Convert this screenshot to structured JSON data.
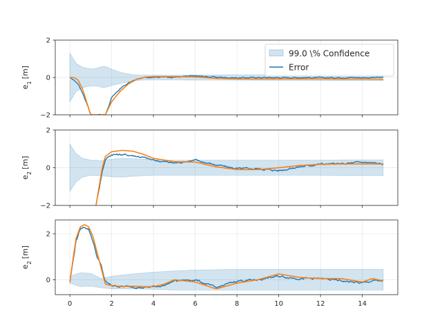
{
  "chart_data": [
    {
      "type": "line",
      "ylabel_main": "e",
      "ylabel_sub": "1",
      "ylabel_unit": "[m]",
      "xlim": [
        -0.7,
        15.7
      ],
      "ylim": [
        -2,
        2
      ],
      "yticks": [
        -2,
        0,
        2
      ],
      "xticks": [
        0,
        2,
        4,
        6,
        8,
        10,
        12,
        14
      ],
      "show_xtick_labels": false,
      "grid": true,
      "legend": {
        "placement": "top-right",
        "entries": [
          {
            "label": "99.0 \\% Confidence",
            "kind": "band"
          },
          {
            "label": "Error",
            "kind": "line"
          }
        ]
      },
      "band": {
        "name": "99.0 \\% Confidence",
        "x": [
          0,
          0.3,
          0.6,
          1.0,
          1.3,
          1.6,
          1.8,
          2.1,
          2.5,
          3.0,
          3.5,
          4,
          5,
          6,
          8,
          10,
          12,
          14,
          15
        ],
        "upper": [
          1.3,
          0.75,
          0.55,
          0.45,
          0.5,
          0.6,
          0.55,
          0.4,
          0.25,
          0.15,
          0.12,
          0.12,
          0.12,
          0.13,
          0.14,
          0.15,
          0.16,
          0.17,
          0.17
        ],
        "lower": [
          -1.3,
          -0.75,
          -0.55,
          -0.45,
          -0.45,
          -0.55,
          -0.5,
          -0.4,
          -0.3,
          -0.18,
          -0.14,
          -0.13,
          -0.13,
          -0.14,
          -0.15,
          -0.16,
          -0.17,
          -0.17,
          -0.17
        ]
      },
      "series": [
        {
          "name": "Error",
          "color": "#1f77b4",
          "x": [
            0,
            0.2,
            0.4,
            0.6,
            0.8,
            1.0,
            1.7,
            2.0,
            2.4,
            2.8,
            3.2,
            3.6,
            4.0,
            5.0,
            6.0,
            7.0,
            8.0,
            9.0,
            10.0,
            11.0,
            12.0,
            13.0,
            14.0,
            15.0
          ],
          "y": [
            0,
            -0.15,
            -0.35,
            -0.8,
            -1.35,
            -2.0,
            -2.0,
            -1.1,
            -0.6,
            -0.3,
            -0.1,
            0.0,
            0.03,
            0.02,
            0.08,
            0.02,
            -0.02,
            0.0,
            -0.01,
            0.0,
            -0.02,
            0.0,
            -0.01,
            0.0
          ],
          "noise": 0.025
        },
        {
          "name": "",
          "color": "#ff7f0e",
          "x": [
            0,
            0.2,
            0.4,
            0.6,
            0.8,
            1.0,
            1.7,
            2.0,
            2.4,
            2.8,
            3.2,
            3.6,
            4.0,
            5.0,
            6.0,
            7.0,
            8.0,
            9.0,
            10.0,
            11.0,
            12.0,
            13.0,
            14.0,
            15.0
          ],
          "y": [
            0,
            0.0,
            -0.15,
            -0.6,
            -1.3,
            -2.0,
            -2.0,
            -1.3,
            -0.75,
            -0.35,
            -0.1,
            0.02,
            0.05,
            0.05,
            0.03,
            -0.05,
            -0.08,
            -0.08,
            -0.08,
            -0.08,
            -0.08,
            -0.09,
            -0.09,
            -0.1
          ],
          "noise": 0
        }
      ]
    },
    {
      "type": "line",
      "ylabel_main": "e",
      "ylabel_sub": "2",
      "ylabel_unit": "[m]",
      "xlim": [
        -0.7,
        15.7
      ],
      "ylim": [
        -2,
        2
      ],
      "yticks": [
        -2,
        0,
        2
      ],
      "xticks": [
        0,
        2,
        4,
        6,
        8,
        10,
        12,
        14
      ],
      "show_xtick_labels": false,
      "grid": true,
      "band": {
        "x": [
          0,
          0.3,
          0.6,
          1.0,
          1.5,
          2.0,
          2.5,
          3.0,
          4.0,
          5.0,
          6.0,
          8.0,
          10.0,
          12.0,
          14.0,
          15.0
        ],
        "upper": [
          1.25,
          0.75,
          0.5,
          0.4,
          0.38,
          0.45,
          0.5,
          0.48,
          0.42,
          0.4,
          0.4,
          0.4,
          0.4,
          0.4,
          0.42,
          0.42
        ],
        "lower": [
          -1.25,
          -0.75,
          -0.5,
          -0.4,
          -0.42,
          -0.48,
          -0.5,
          -0.45,
          -0.4,
          -0.4,
          -0.4,
          -0.4,
          -0.4,
          -0.4,
          -0.42,
          -0.42
        ]
      },
      "series": [
        {
          "name": "Error",
          "color": "#1f77b4",
          "x": [
            1.25,
            1.4,
            1.55,
            1.7,
            2.0,
            2.5,
            3.0,
            3.5,
            4.0,
            5.0,
            6.0,
            7.0,
            8.0,
            9.0,
            10.0,
            11.0,
            12.0,
            13.0,
            14.0,
            15.0
          ],
          "y": [
            -2.0,
            -1.1,
            -0.2,
            0.45,
            0.7,
            0.7,
            0.65,
            0.55,
            0.4,
            0.25,
            0.4,
            0.15,
            -0.05,
            -0.05,
            -0.15,
            0.05,
            0.2,
            0.2,
            0.3,
            0.2
          ],
          "noise": 0.04
        },
        {
          "name": "",
          "color": "#ff7f0e",
          "x": [
            1.25,
            1.4,
            1.55,
            1.7,
            2.0,
            2.5,
            3.0,
            3.5,
            4.0,
            5.0,
            6.0,
            7.0,
            8.0,
            9.0,
            10.0,
            11.0,
            12.0,
            13.0,
            14.0,
            15.0
          ],
          "y": [
            -2.0,
            -1.0,
            0.0,
            0.6,
            0.85,
            0.92,
            0.88,
            0.72,
            0.5,
            0.32,
            0.3,
            0.05,
            -0.1,
            -0.1,
            0.0,
            0.12,
            0.18,
            0.2,
            0.2,
            0.2
          ],
          "noise": 0
        }
      ]
    },
    {
      "type": "line",
      "ylabel_main": "e",
      "ylabel_sub": "2",
      "ylabel_unit": "[m]",
      "xlim": [
        -0.7,
        15.7
      ],
      "ylim": [
        -0.65,
        2.6
      ],
      "yticks": [
        0,
        2
      ],
      "xticks": [
        0,
        2,
        4,
        6,
        8,
        10,
        12,
        14
      ],
      "show_xtick_labels": true,
      "grid": true,
      "band": {
        "x": [
          0,
          0.5,
          1.0,
          1.5,
          2.0,
          3.0,
          4.0,
          5.0,
          6.0,
          8.0,
          10.0,
          12.0,
          14.0,
          15.0
        ],
        "upper": [
          0.15,
          0.3,
          0.28,
          0.05,
          0.15,
          0.25,
          0.33,
          0.38,
          0.42,
          0.45,
          0.45,
          0.45,
          0.45,
          0.45
        ],
        "lower": [
          -0.15,
          -0.3,
          -0.28,
          -0.35,
          -0.4,
          -0.4,
          -0.42,
          -0.45,
          -0.45,
          -0.45,
          -0.45,
          -0.45,
          -0.45,
          -0.45
        ]
      },
      "series": [
        {
          "name": "Error",
          "color": "#1f77b4",
          "x": [
            0,
            0.15,
            0.3,
            0.5,
            0.7,
            0.9,
            1.1,
            1.3,
            1.5,
            1.7,
            2.0,
            2.5,
            3.0,
            3.5,
            4.0,
            4.5,
            5.0,
            6.0,
            7.0,
            8.0,
            9.0,
            10.0,
            11.0,
            12.0,
            13.0,
            14.0,
            14.5,
            15.0
          ],
          "y": [
            -0.1,
            0.8,
            1.7,
            2.2,
            2.3,
            2.2,
            1.7,
            1.0,
            0.6,
            -0.1,
            -0.25,
            -0.3,
            -0.3,
            -0.35,
            -0.3,
            -0.25,
            -0.05,
            0.0,
            -0.35,
            -0.05,
            0.0,
            0.15,
            0.05,
            0.05,
            -0.05,
            -0.15,
            -0.05,
            -0.05
          ],
          "noise": 0.035
        },
        {
          "name": "",
          "color": "#ff7f0e",
          "x": [
            0,
            0.15,
            0.3,
            0.5,
            0.7,
            0.9,
            1.1,
            1.3,
            1.5,
            1.7,
            2.0,
            2.5,
            3.0,
            3.5,
            4.0,
            4.5,
            5.0,
            6.0,
            7.0,
            8.0,
            9.0,
            10.0,
            11.0,
            12.0,
            13.0,
            14.0,
            14.5,
            15.0
          ],
          "y": [
            -0.1,
            0.9,
            1.8,
            2.3,
            2.4,
            2.3,
            1.9,
            1.2,
            0.5,
            -0.2,
            -0.25,
            -0.3,
            -0.28,
            -0.3,
            -0.3,
            -0.2,
            0.0,
            -0.1,
            -0.4,
            -0.15,
            0.0,
            0.25,
            0.1,
            0.05,
            0.05,
            -0.1,
            0.05,
            -0.05
          ],
          "noise": 0
        }
      ]
    }
  ]
}
